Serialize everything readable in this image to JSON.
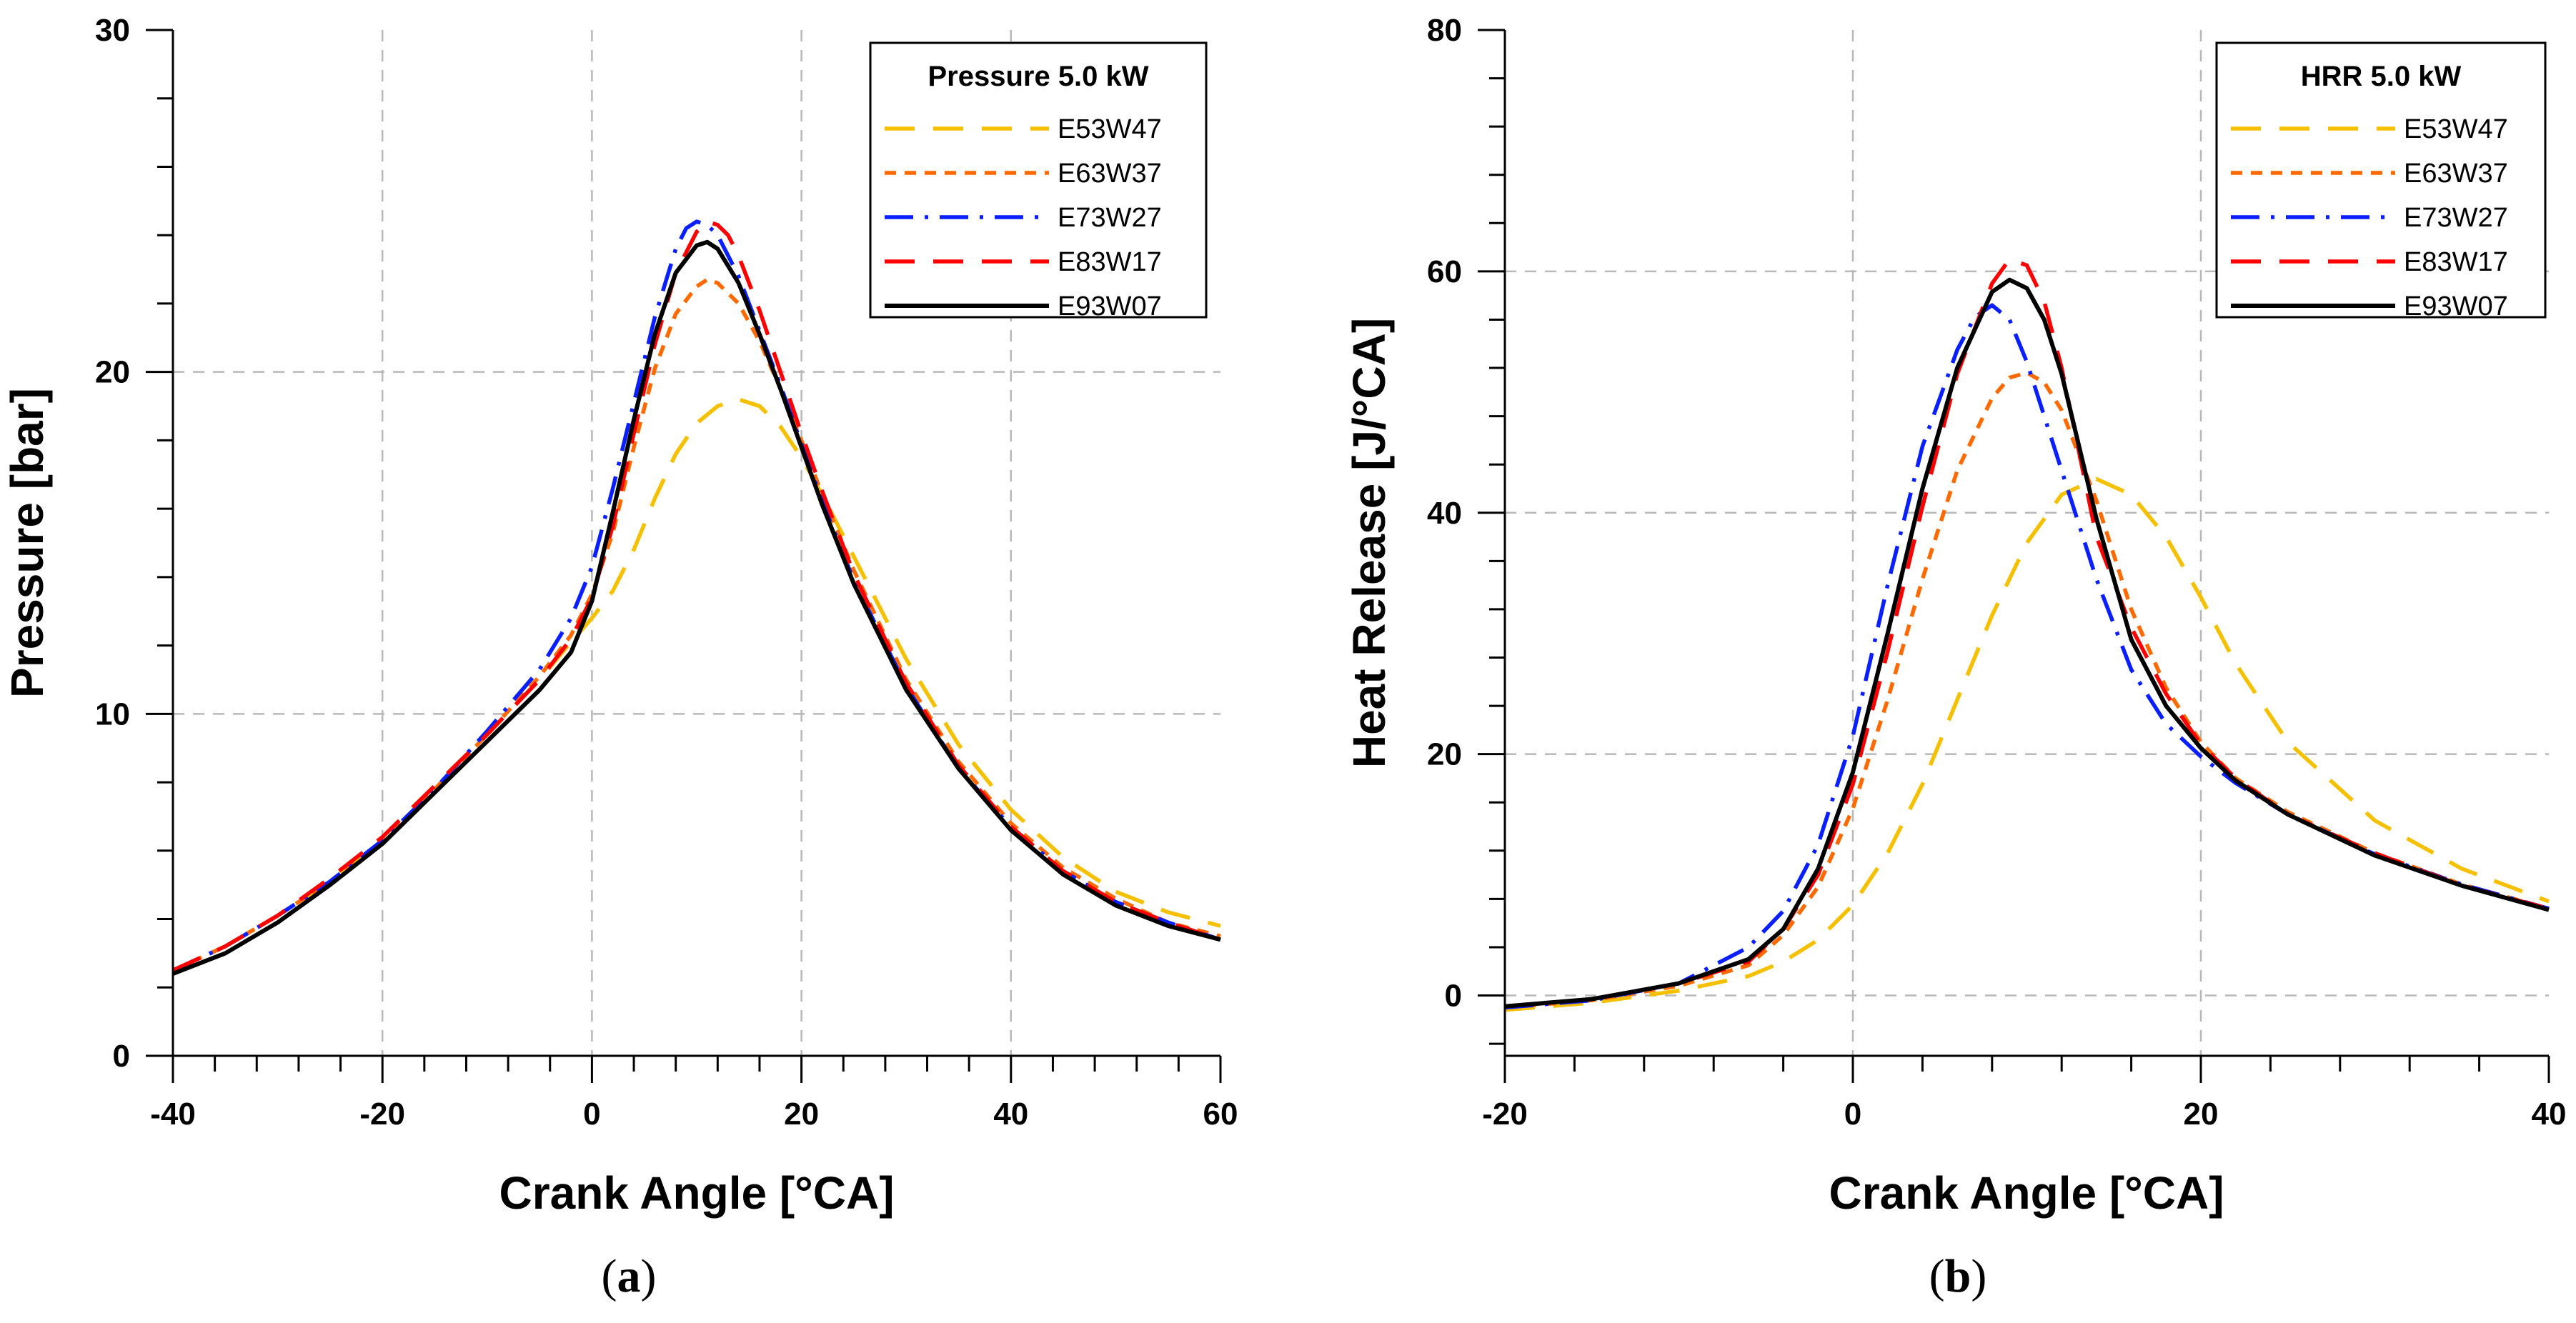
{
  "chart_data": [
    {
      "type": "line",
      "panel_label": "a",
      "legend_title": "Pressure 5.0 kW",
      "xlabel": "Crank Angle [°CA]",
      "ylabel": "Pressure [bar]",
      "xlim": [
        -40,
        60
      ],
      "ylim": [
        0,
        30
      ],
      "xticks": [
        -40,
        -20,
        0,
        20,
        40,
        60
      ],
      "yticks": [
        0,
        10,
        20,
        30
      ],
      "grid": true,
      "legend_position": "top-right",
      "series": [
        {
          "name": "E53W47",
          "color": "#f5c000",
          "dash": "long-dash",
          "x": [
            -40,
            -35,
            -30,
            -25,
            -20,
            -15,
            -10,
            -5,
            -2,
            0,
            2,
            4,
            6,
            8,
            10,
            12,
            14,
            16,
            18,
            20,
            22,
            25,
            30,
            35,
            40,
            45,
            50,
            55,
            60
          ],
          "y": [
            2.5,
            3.2,
            4.1,
            5.1,
            6.4,
            7.9,
            9.4,
            11.0,
            12.1,
            12.8,
            13.6,
            14.8,
            16.3,
            17.6,
            18.5,
            19.0,
            19.2,
            19.0,
            18.4,
            17.5,
            16.4,
            14.6,
            11.6,
            9.1,
            7.2,
            5.8,
            4.8,
            4.2,
            3.8
          ]
        },
        {
          "name": "E63W37",
          "color": "#ff6a00",
          "dash": "short-dash",
          "x": [
            -40,
            -35,
            -30,
            -25,
            -20,
            -15,
            -10,
            -5,
            -2,
            0,
            2,
            4,
            6,
            8,
            10,
            11,
            12,
            14,
            16,
            18,
            20,
            22,
            25,
            30,
            35,
            40,
            45,
            50,
            55,
            60
          ],
          "y": [
            2.5,
            3.2,
            4.1,
            5.1,
            6.3,
            7.8,
            9.4,
            11.1,
            12.3,
            13.5,
            15.3,
            17.8,
            20.1,
            21.7,
            22.5,
            22.7,
            22.6,
            22.0,
            20.9,
            19.5,
            18.0,
            16.4,
            14.2,
            11.0,
            8.6,
            6.8,
            5.5,
            4.6,
            3.9,
            3.5
          ]
        },
        {
          "name": "E73W27",
          "color": "#0a1fff",
          "dash": "dash-dot",
          "x": [
            -40,
            -35,
            -30,
            -25,
            -20,
            -15,
            -10,
            -5,
            -2,
            0,
            2,
            4,
            6,
            8,
            9,
            10,
            11,
            12,
            14,
            16,
            18,
            20,
            22,
            25,
            30,
            35,
            40,
            45,
            50,
            55,
            60
          ],
          "y": [
            2.5,
            3.2,
            4.1,
            5.1,
            6.3,
            7.8,
            9.5,
            11.3,
            12.8,
            14.3,
            16.6,
            19.1,
            21.6,
            23.6,
            24.2,
            24.4,
            24.3,
            24.0,
            22.8,
            21.2,
            19.6,
            17.9,
            16.2,
            13.9,
            10.8,
            8.4,
            6.7,
            5.4,
            4.5,
            3.9,
            3.4
          ]
        },
        {
          "name": "E83W17",
          "color": "#ff0000",
          "dash": "long-dash",
          "x": [
            -40,
            -35,
            -30,
            -25,
            -20,
            -15,
            -10,
            -5,
            -2,
            0,
            2,
            4,
            6,
            8,
            10,
            11,
            12,
            13,
            14,
            16,
            18,
            20,
            22,
            25,
            30,
            35,
            40,
            45,
            50,
            55,
            60
          ],
          "y": [
            2.5,
            3.2,
            4.1,
            5.2,
            6.4,
            7.9,
            9.4,
            11.0,
            12.2,
            13.4,
            15.5,
            18.2,
            20.8,
            22.9,
            24.1,
            24.4,
            24.3,
            24.0,
            23.4,
            21.8,
            20.0,
            18.2,
            16.5,
            14.1,
            10.9,
            8.5,
            6.7,
            5.4,
            4.5,
            3.9,
            3.4
          ]
        },
        {
          "name": "E93W07",
          "color": "#000000",
          "dash": "solid",
          "x": [
            -40,
            -35,
            -30,
            -25,
            -20,
            -15,
            -10,
            -5,
            -2,
            0,
            2,
            4,
            6,
            8,
            10,
            11,
            12,
            14,
            16,
            18,
            20,
            22,
            25,
            30,
            35,
            40,
            45,
            50,
            55,
            60
          ],
          "y": [
            2.4,
            3.0,
            3.9,
            5.0,
            6.2,
            7.7,
            9.2,
            10.7,
            11.8,
            13.3,
            15.9,
            18.6,
            21.1,
            22.9,
            23.7,
            23.8,
            23.6,
            22.6,
            21.1,
            19.5,
            17.8,
            16.1,
            13.8,
            10.7,
            8.4,
            6.6,
            5.3,
            4.4,
            3.8,
            3.4
          ]
        }
      ]
    },
    {
      "type": "line",
      "panel_label": "b",
      "legend_title": "HRR 5.0 kW",
      "xlabel": "Crank Angle [°CA]",
      "ylabel": "Heat Release [J/°CA]",
      "xlim": [
        -20,
        40
      ],
      "ylim": [
        -5,
        80
      ],
      "xticks": [
        -20,
        0,
        20,
        40
      ],
      "yticks": [
        0,
        20,
        40,
        60,
        80
      ],
      "grid": true,
      "legend_position": "top-right",
      "series": [
        {
          "name": "E53W47",
          "color": "#f5c000",
          "dash": "long-dash",
          "x": [
            -20,
            -15,
            -10,
            -6,
            -4,
            -2,
            0,
            2,
            4,
            6,
            8,
            10,
            12,
            14,
            16,
            18,
            20,
            22,
            25,
            30,
            35,
            40
          ],
          "y": [
            -1.2,
            -0.6,
            0.4,
            1.6,
            2.8,
            4.6,
            7.5,
            11.8,
            17.5,
            24.5,
            31.5,
            37.5,
            41.5,
            42.8,
            41.5,
            38.0,
            33.0,
            27.5,
            21.0,
            14.5,
            10.5,
            7.8
          ]
        },
        {
          "name": "E63W37",
          "color": "#ff6a00",
          "dash": "short-dash",
          "x": [
            -20,
            -15,
            -10,
            -6,
            -4,
            -2,
            0,
            2,
            4,
            6,
            8,
            9,
            10,
            11,
            12,
            14,
            16,
            18,
            20,
            22,
            25,
            30,
            35,
            40
          ],
          "y": [
            -1.0,
            -0.4,
            0.8,
            2.5,
            5.0,
            9.0,
            15.5,
            24.5,
            34.5,
            43.5,
            49.5,
            51.2,
            51.6,
            50.8,
            48.5,
            41.0,
            32.0,
            25.5,
            21.0,
            18.0,
            15.2,
            11.8,
            9.2,
            7.2
          ]
        },
        {
          "name": "E73W27",
          "color": "#0a1fff",
          "dash": "dash-dot",
          "x": [
            -20,
            -15,
            -10,
            -6,
            -4,
            -2,
            0,
            2,
            4,
            6,
            7,
            8,
            9,
            10,
            12,
            14,
            16,
            18,
            20,
            22,
            25,
            30,
            35,
            40
          ],
          "y": [
            -1.0,
            -0.4,
            1.0,
            4.0,
            7.0,
            12.5,
            21.5,
            34.0,
            45.5,
            53.5,
            56.2,
            57.2,
            56.0,
            52.5,
            43.5,
            34.5,
            27.0,
            22.5,
            19.8,
            17.6,
            15.0,
            11.7,
            9.2,
            7.2
          ]
        },
        {
          "name": "E83W17",
          "color": "#ff0000",
          "dash": "long-dash",
          "x": [
            -20,
            -15,
            -10,
            -6,
            -4,
            -2,
            0,
            2,
            4,
            6,
            8,
            9,
            10,
            11,
            12,
            13,
            14,
            16,
            18,
            20,
            22,
            25,
            30,
            35,
            40
          ],
          "y": [
            -0.9,
            -0.3,
            1.0,
            2.8,
            5.5,
            10.0,
            17.5,
            28.5,
            40.5,
            51.5,
            59.0,
            61.0,
            60.5,
            57.5,
            52.0,
            45.0,
            38.0,
            30.5,
            25.0,
            20.8,
            18.0,
            15.0,
            11.8,
            9.1,
            7.2
          ]
        },
        {
          "name": "E93W07",
          "color": "#000000",
          "dash": "solid",
          "x": [
            -20,
            -15,
            -10,
            -6,
            -4,
            -2,
            0,
            2,
            4,
            6,
            8,
            9,
            10,
            11,
            12,
            14,
            16,
            18,
            20,
            22,
            25,
            30,
            35,
            40
          ],
          "y": [
            -0.9,
            -0.3,
            1.0,
            3.0,
            5.5,
            10.5,
            18.5,
            30.0,
            42.0,
            52.0,
            58.3,
            59.3,
            58.6,
            56.0,
            51.5,
            39.5,
            29.5,
            24.0,
            20.5,
            17.8,
            15.0,
            11.6,
            9.1,
            7.1
          ]
        }
      ]
    }
  ]
}
